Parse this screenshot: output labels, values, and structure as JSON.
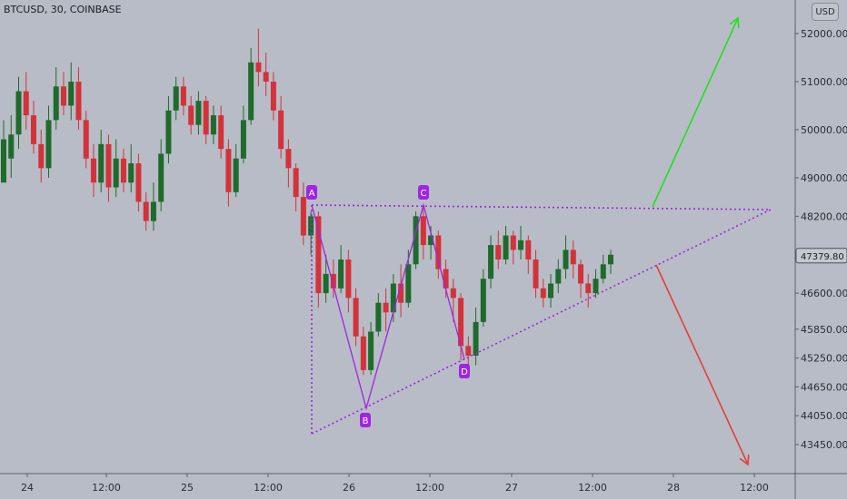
{
  "header": {
    "title": "BTCUSD, 30, COINBASE",
    "currency": "USD"
  },
  "colors": {
    "background": "#b8bcc6",
    "up": "#1e6b2c",
    "down": "#d3323a",
    "pattern": "#9f25e0",
    "trendline": "#9f25e0",
    "arrow_up": "#22e022",
    "arrow_down": "#e2403a"
  },
  "chart_data": {
    "type": "candlestick",
    "title": "BTCUSD, 30, COINBASE",
    "y_axis": {
      "ticks": [
        "52000.00",
        "51000.00",
        "50000.00",
        "49000.00",
        "48200.00",
        "47379.80",
        "46600.00",
        "45850.00",
        "45250.00",
        "44650.00",
        "44050.00",
        "43450.00"
      ],
      "range": [
        42800,
        52500
      ]
    },
    "x_axis": {
      "ticks": [
        "24",
        "12:00",
        "25",
        "12:00",
        "26",
        "12:00",
        "27",
        "12:00",
        "28",
        "12:00"
      ]
    },
    "current_price": "47379.80",
    "candles_approx": [
      [
        48900,
        49800,
        49400,
        50200
      ],
      [
        49400,
        49900,
        49000,
        50300
      ],
      [
        49900,
        50800,
        49600,
        51100
      ],
      [
        50800,
        50300,
        50000,
        51200
      ],
      [
        50300,
        49700,
        49500,
        50600
      ],
      [
        49700,
        49200,
        48900,
        50000
      ],
      [
        49200,
        50200,
        49000,
        50500
      ],
      [
        50200,
        50900,
        50000,
        51300
      ],
      [
        50900,
        50500,
        50300,
        51200
      ],
      [
        50500,
        51000,
        50200,
        51400
      ],
      [
        51000,
        50200,
        50000,
        51300
      ],
      [
        50200,
        49400,
        49200,
        50400
      ],
      [
        49400,
        48900,
        48600,
        49700
      ],
      [
        48900,
        49700,
        48700,
        50000
      ],
      [
        49700,
        48800,
        48500,
        49900
      ],
      [
        48800,
        49400,
        48600,
        49800
      ],
      [
        49400,
        48900,
        48700,
        49600
      ],
      [
        48900,
        49300,
        48700,
        49700
      ],
      [
        49300,
        48500,
        48300,
        49500
      ],
      [
        48500,
        48100,
        47900,
        48700
      ],
      [
        48100,
        48500,
        47900,
        48900
      ],
      [
        48500,
        49500,
        48300,
        49800
      ],
      [
        49500,
        50400,
        49300,
        50700
      ],
      [
        50400,
        50900,
        50200,
        51100
      ],
      [
        50900,
        50500,
        50300,
        51100
      ],
      [
        50500,
        50100,
        49900,
        50700
      ],
      [
        50100,
        50600,
        49900,
        50800
      ],
      [
        50600,
        49900,
        49700,
        50700
      ],
      [
        49900,
        50300,
        49700,
        50500
      ],
      [
        50300,
        49600,
        49400,
        50500
      ],
      [
        49600,
        48700,
        48400,
        49800
      ],
      [
        48700,
        49400,
        48600,
        49700
      ],
      [
        49400,
        50200,
        49300,
        50500
      ],
      [
        50200,
        51400,
        50100,
        51700
      ],
      [
        51400,
        51200,
        50900,
        52100
      ],
      [
        51200,
        51000,
        50700,
        51600
      ],
      [
        51000,
        50400,
        50200,
        51200
      ],
      [
        50400,
        49600,
        49400,
        50700
      ],
      [
        49600,
        49200,
        48800,
        49800
      ],
      [
        49200,
        48600,
        48300,
        49300
      ],
      [
        48600,
        47800,
        47600,
        48900
      ],
      [
        47800,
        48200,
        47400,
        48300
      ],
      [
        48200,
        46600,
        46300,
        48300
      ],
      [
        46600,
        47000,
        46400,
        47400
      ],
      [
        47000,
        46700,
        46500,
        47300
      ],
      [
        46700,
        47300,
        46600,
        47600
      ],
      [
        47300,
        46500,
        46200,
        47500
      ],
      [
        46500,
        45700,
        45500,
        46700
      ],
      [
        45700,
        45000,
        44900,
        45900
      ],
      [
        45000,
        45800,
        44900,
        46000
      ],
      [
        45800,
        46400,
        45700,
        46600
      ],
      [
        46400,
        46200,
        45800,
        46700
      ],
      [
        46200,
        46800,
        46000,
        47000
      ],
      [
        46800,
        46400,
        46100,
        47200
      ],
      [
        46400,
        47200,
        46300,
        47500
      ],
      [
        47200,
        48200,
        47100,
        48300
      ],
      [
        48200,
        47600,
        47300,
        48400
      ],
      [
        47600,
        47800,
        47300,
        48000
      ],
      [
        47800,
        47100,
        46900,
        47900
      ],
      [
        47100,
        46700,
        46500,
        47300
      ],
      [
        46700,
        46500,
        46000,
        46900
      ],
      [
        46500,
        45500,
        45200,
        46600
      ],
      [
        45500,
        45300,
        45100,
        45700
      ],
      [
        45300,
        46000,
        45100,
        46300
      ],
      [
        46000,
        46900,
        45900,
        47100
      ],
      [
        46900,
        47600,
        46700,
        47800
      ],
      [
        47600,
        47300,
        47100,
        47900
      ],
      [
        47300,
        47800,
        47200,
        48000
      ],
      [
        47800,
        47500,
        47200,
        47900
      ],
      [
        47500,
        47700,
        47300,
        48000
      ],
      [
        47700,
        47300,
        47000,
        47800
      ],
      [
        47300,
        46700,
        46500,
        47500
      ],
      [
        46700,
        46500,
        46300,
        46900
      ],
      [
        46500,
        46800,
        46300,
        47000
      ],
      [
        46800,
        47100,
        46600,
        47300
      ],
      [
        47100,
        47500,
        46900,
        47800
      ],
      [
        47500,
        47200,
        46900,
        47700
      ],
      [
        47200,
        46800,
        46500,
        47300
      ],
      [
        46800,
        46600,
        46300,
        47000
      ],
      [
        46600,
        46900,
        46500,
        47100
      ],
      [
        46900,
        47200,
        46800,
        47400
      ],
      [
        47200,
        47400,
        47000,
        47500
      ]
    ],
    "pattern_points": [
      {
        "label": "A",
        "price": 48200
      },
      {
        "label": "B",
        "price": 44150
      },
      {
        "label": "C",
        "price": 48200
      },
      {
        "label": "D",
        "price": 45150
      }
    ],
    "annotations": [
      "triangle pattern",
      "breakout up arrow",
      "breakdown down arrow"
    ]
  }
}
